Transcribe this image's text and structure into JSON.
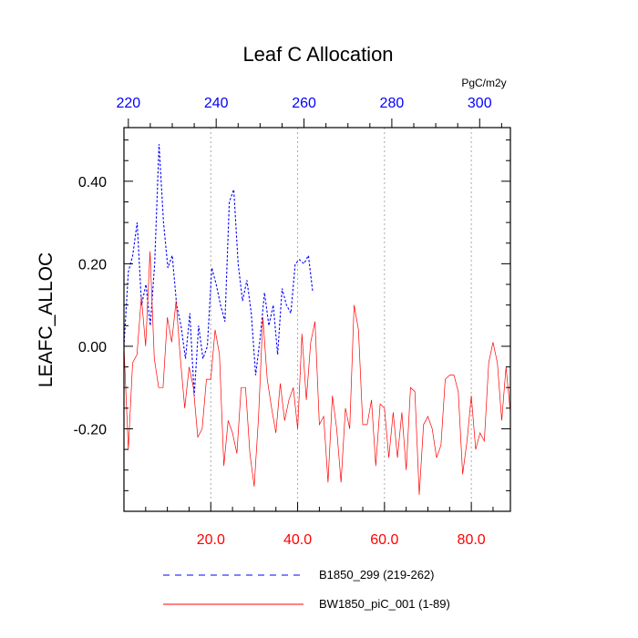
{
  "chart_data": {
    "type": "line",
    "title": "Leaf C Allocation",
    "ylabel": "LEAFC_ALLOC",
    "top_axis_unit": "PgC/m2y",
    "xlim": [
      0,
      89
    ],
    "ylim": [
      -0.4,
      0.53
    ],
    "top_xlim": [
      219,
      307
    ],
    "x_ticks": [
      20,
      40,
      60,
      80
    ],
    "x_tick_labels": [
      "20.0",
      "40.0",
      "60.0",
      "80.0"
    ],
    "y_ticks": [
      -0.2,
      0.0,
      0.2,
      0.4
    ],
    "y_tick_labels": [
      "-0.20",
      "0.00",
      "0.20",
      "0.40"
    ],
    "top_ticks": [
      220,
      240,
      260,
      280,
      300
    ],
    "top_tick_labels": [
      "220",
      "240",
      "260",
      "280",
      "300"
    ],
    "x_tick_color": "#ff0000",
    "top_tick_color": "#0000ff",
    "grid": "vertical dotted at bottom x ticks",
    "series": [
      {
        "name": "B1850_299 (219-262)",
        "color": "#0000ff",
        "style": "dashed",
        "axis": "top",
        "x": [
          219,
          220,
          221,
          222,
          223,
          224,
          225,
          226,
          227,
          228,
          229,
          230,
          231,
          232,
          233,
          234,
          235,
          236,
          237,
          238,
          239,
          240,
          241,
          242,
          243,
          244,
          245,
          246,
          247,
          248,
          249,
          250,
          251,
          252,
          253,
          254,
          255,
          256,
          257,
          258,
          259,
          260,
          261,
          262
        ],
        "values": [
          0.0,
          0.18,
          0.22,
          0.3,
          0.1,
          0.15,
          0.05,
          0.2,
          0.49,
          0.3,
          0.19,
          0.22,
          0.1,
          0.05,
          -0.03,
          0.08,
          -0.12,
          0.05,
          -0.03,
          0.0,
          0.19,
          0.15,
          0.1,
          0.06,
          0.35,
          0.38,
          0.2,
          0.11,
          0.16,
          0.08,
          -0.07,
          0.02,
          0.13,
          0.05,
          0.1,
          -0.02,
          0.14,
          0.1,
          0.08,
          0.2,
          0.21,
          0.2,
          0.22,
          0.13
        ]
      },
      {
        "name": "BW1850_piC_001 (1-89)",
        "color": "#ff0000",
        "style": "solid",
        "axis": "bottom",
        "x": [
          0,
          1,
          2,
          3,
          4,
          5,
          6,
          7,
          8,
          9,
          10,
          11,
          12,
          13,
          14,
          15,
          16,
          17,
          18,
          19,
          20,
          21,
          22,
          23,
          24,
          25,
          26,
          27,
          28,
          29,
          30,
          31,
          32,
          33,
          34,
          35,
          36,
          37,
          38,
          39,
          40,
          41,
          42,
          43,
          44,
          45,
          46,
          47,
          48,
          49,
          50,
          51,
          52,
          53,
          54,
          55,
          56,
          57,
          58,
          59,
          60,
          61,
          62,
          63,
          64,
          65,
          66,
          67,
          68,
          69,
          70,
          71,
          72,
          73,
          74,
          75,
          76,
          77,
          78,
          79,
          80,
          81,
          82,
          83,
          84,
          85,
          86,
          87,
          88,
          89
        ],
        "values": [
          0.0,
          -0.25,
          -0.04,
          -0.02,
          0.12,
          0.0,
          0.23,
          -0.03,
          -0.1,
          -0.1,
          0.07,
          0.01,
          0.11,
          -0.03,
          -0.15,
          -0.05,
          -0.1,
          -0.22,
          -0.2,
          -0.08,
          -0.08,
          0.04,
          -0.02,
          -0.29,
          -0.18,
          -0.21,
          -0.26,
          -0.1,
          -0.1,
          -0.26,
          -0.34,
          -0.17,
          0.07,
          -0.08,
          -0.15,
          -0.21,
          -0.09,
          -0.18,
          -0.13,
          -0.1,
          -0.2,
          0.03,
          -0.13,
          0.01,
          0.06,
          -0.19,
          -0.17,
          -0.33,
          -0.12,
          -0.2,
          -0.33,
          -0.15,
          -0.2,
          0.1,
          0.04,
          -0.19,
          -0.19,
          -0.13,
          -0.29,
          -0.14,
          -0.15,
          -0.27,
          -0.16,
          -0.27,
          -0.16,
          -0.3,
          -0.1,
          -0.11,
          -0.36,
          -0.19,
          -0.17,
          -0.2,
          -0.27,
          -0.24,
          -0.08,
          -0.07,
          -0.07,
          -0.11,
          -0.31,
          -0.23,
          -0.12,
          -0.25,
          -0.21,
          -0.23,
          -0.04,
          0.01,
          -0.04,
          -0.18,
          -0.05,
          -0.16
        ]
      }
    ]
  }
}
